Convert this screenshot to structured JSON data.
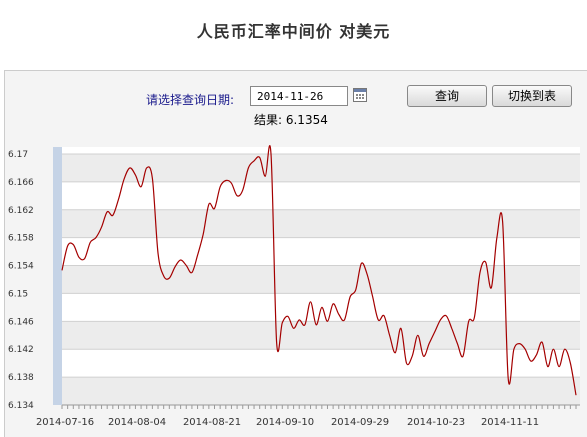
{
  "page": {
    "title": "人民币汇率中间价  对美元",
    "query_label": "请选择查询日期:",
    "date_value": "2014-11-26",
    "query_button": "查询",
    "table_button": "切换到表",
    "result_label": "结果: 6.1354"
  },
  "chart_data": {
    "type": "line",
    "title": "",
    "xlabel": "",
    "ylabel": "",
    "ylim": [
      6.134,
      6.171
    ],
    "yticks": [
      "6.17",
      "6.166",
      "6.162",
      "6.158",
      "6.154",
      "6.15",
      "6.146",
      "6.142",
      "6.138",
      "6.134"
    ],
    "xticks": [
      "2014-07-16",
      "2014-08-04",
      "2014-08-21",
      "2014-09-10",
      "2014-09-29",
      "2014-10-23",
      "2014-11-11"
    ],
    "grid": true,
    "color": "#a40000",
    "series": [
      {
        "values": [
          6.1533,
          6.1568,
          6.157,
          6.1552,
          6.155,
          6.1573,
          6.158,
          6.1595,
          6.1617,
          6.1612,
          6.1635,
          6.1664,
          6.168,
          6.167,
          6.1653,
          6.168,
          6.1665,
          6.1558,
          6.1525,
          6.1522,
          6.1538,
          6.1548,
          6.154,
          6.153,
          6.1555,
          6.1585,
          6.1628,
          6.1622,
          6.1653,
          6.1662,
          6.1658,
          6.164,
          6.1648,
          6.168,
          6.169,
          6.1695,
          6.1668,
          6.17,
          6.143,
          6.1458,
          6.1467,
          6.145,
          6.1462,
          6.1455,
          6.1488,
          6.1455,
          6.148,
          6.146,
          6.1485,
          6.147,
          6.1462,
          6.1495,
          6.1505,
          6.1543,
          6.1528,
          6.1495,
          6.1462,
          6.1468,
          6.144,
          6.1415,
          6.145,
          6.14,
          6.141,
          6.144,
          6.141,
          6.1428,
          6.1445,
          6.1462,
          6.1468,
          6.145,
          6.1428,
          6.141,
          6.146,
          6.1465,
          6.153,
          6.1545,
          6.1508,
          6.158,
          6.1603,
          6.1378,
          6.142,
          6.1428,
          6.142,
          6.1403,
          6.1412,
          6.143,
          6.1395,
          6.142,
          6.1395,
          6.142,
          6.14,
          6.1354
        ]
      }
    ]
  }
}
